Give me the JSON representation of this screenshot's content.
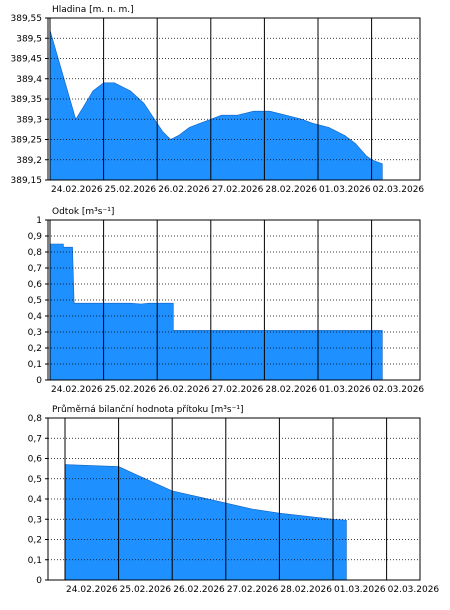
{
  "chart_data": [
    {
      "type": "area",
      "title": "Hladina [m. n. m.]",
      "xlabels": [
        "24.02.2026",
        "25.02.2026",
        "26.02.2026",
        "27.02.2026",
        "28.02.2026",
        "01.03.2026",
        "02.03.2026"
      ],
      "ylim": [
        389.15,
        389.55
      ],
      "yticks": [
        "389,55",
        "389,5",
        "389,45",
        "389,4",
        "389,35",
        "389,3",
        "389,25",
        "389,2",
        "389,15"
      ],
      "x_range_days": [
        0,
        7
      ],
      "grid": true,
      "fill_color": "#1e90ff",
      "points": [
        [
          0,
          389.52
        ],
        [
          0.48,
          389.3
        ],
        [
          0.62,
          389.33
        ],
        [
          0.8,
          389.37
        ],
        [
          1.0,
          389.39
        ],
        [
          1.2,
          389.39
        ],
        [
          1.5,
          389.37
        ],
        [
          1.75,
          389.34
        ],
        [
          1.95,
          389.3
        ],
        [
          2.1,
          389.27
        ],
        [
          2.25,
          389.25
        ],
        [
          2.4,
          389.26
        ],
        [
          2.6,
          389.28
        ],
        [
          2.8,
          389.29
        ],
        [
          3.0,
          389.3
        ],
        [
          3.2,
          389.31
        ],
        [
          3.5,
          389.31
        ],
        [
          3.8,
          389.32
        ],
        [
          4.1,
          389.32
        ],
        [
          4.4,
          389.31
        ],
        [
          4.7,
          389.3
        ],
        [
          4.9,
          389.29
        ],
        [
          5.2,
          389.28
        ],
        [
          5.5,
          389.26
        ],
        [
          5.7,
          389.24
        ],
        [
          5.9,
          389.21
        ],
        [
          6.0,
          389.2
        ],
        [
          6.2,
          389.19
        ]
      ]
    },
    {
      "type": "area",
      "title": "Odtok [m³s⁻¹]",
      "xlabels": [
        "24.02.2026",
        "25.02.2026",
        "26.02.2026",
        "27.02.2026",
        "28.02.2026",
        "01.03.2026",
        "02.03.2026"
      ],
      "ylim": [
        0,
        1
      ],
      "yticks": [
        "1",
        "0,9",
        "0,8",
        "0,7",
        "0,6",
        "0,5",
        "0,4",
        "0,3",
        "0,2",
        "0,1",
        "0"
      ],
      "x_range_days": [
        0,
        7
      ],
      "grid": true,
      "fill_color": "#1e90ff",
      "points": [
        [
          0,
          0.85
        ],
        [
          0.25,
          0.85
        ],
        [
          0.25,
          0.83
        ],
        [
          0.42,
          0.83
        ],
        [
          0.45,
          0.48
        ],
        [
          1.0,
          0.48
        ],
        [
          1.5,
          0.48
        ],
        [
          1.7,
          0.475
        ],
        [
          1.85,
          0.48
        ],
        [
          2.3,
          0.48
        ],
        [
          2.3,
          0.31
        ],
        [
          3.0,
          0.31
        ],
        [
          3.5,
          0.31
        ],
        [
          4.0,
          0.31
        ],
        [
          4.5,
          0.31
        ],
        [
          5.0,
          0.31
        ],
        [
          5.5,
          0.31
        ],
        [
          6.0,
          0.31
        ],
        [
          6.2,
          0.31
        ]
      ]
    },
    {
      "type": "area",
      "title": "Průměrná bilanční hodnota přítoku [m³s⁻¹]",
      "xlabels": [
        "24.02.2026",
        "25.02.2026",
        "26.02.2026",
        "27.02.2026",
        "28.02.2026",
        "01.03.2026",
        "02.03.2026"
      ],
      "ylim": [
        0,
        0.8
      ],
      "yticks": [
        "0,8",
        "0,7",
        "0,6",
        "0,5",
        "0,4",
        "0,3",
        "0,2",
        "0,1",
        "0"
      ],
      "x_range_days": [
        0,
        7
      ],
      "grid": true,
      "fill_color": "#1e90ff",
      "points": [
        [
          0,
          0.57
        ],
        [
          1.0,
          0.56
        ],
        [
          1.5,
          0.5
        ],
        [
          2.0,
          0.44
        ],
        [
          2.5,
          0.41
        ],
        [
          3.0,
          0.38
        ],
        [
          3.5,
          0.35
        ],
        [
          4.0,
          0.33
        ],
        [
          4.5,
          0.315
        ],
        [
          5.0,
          0.3
        ],
        [
          5.25,
          0.295
        ]
      ]
    }
  ]
}
